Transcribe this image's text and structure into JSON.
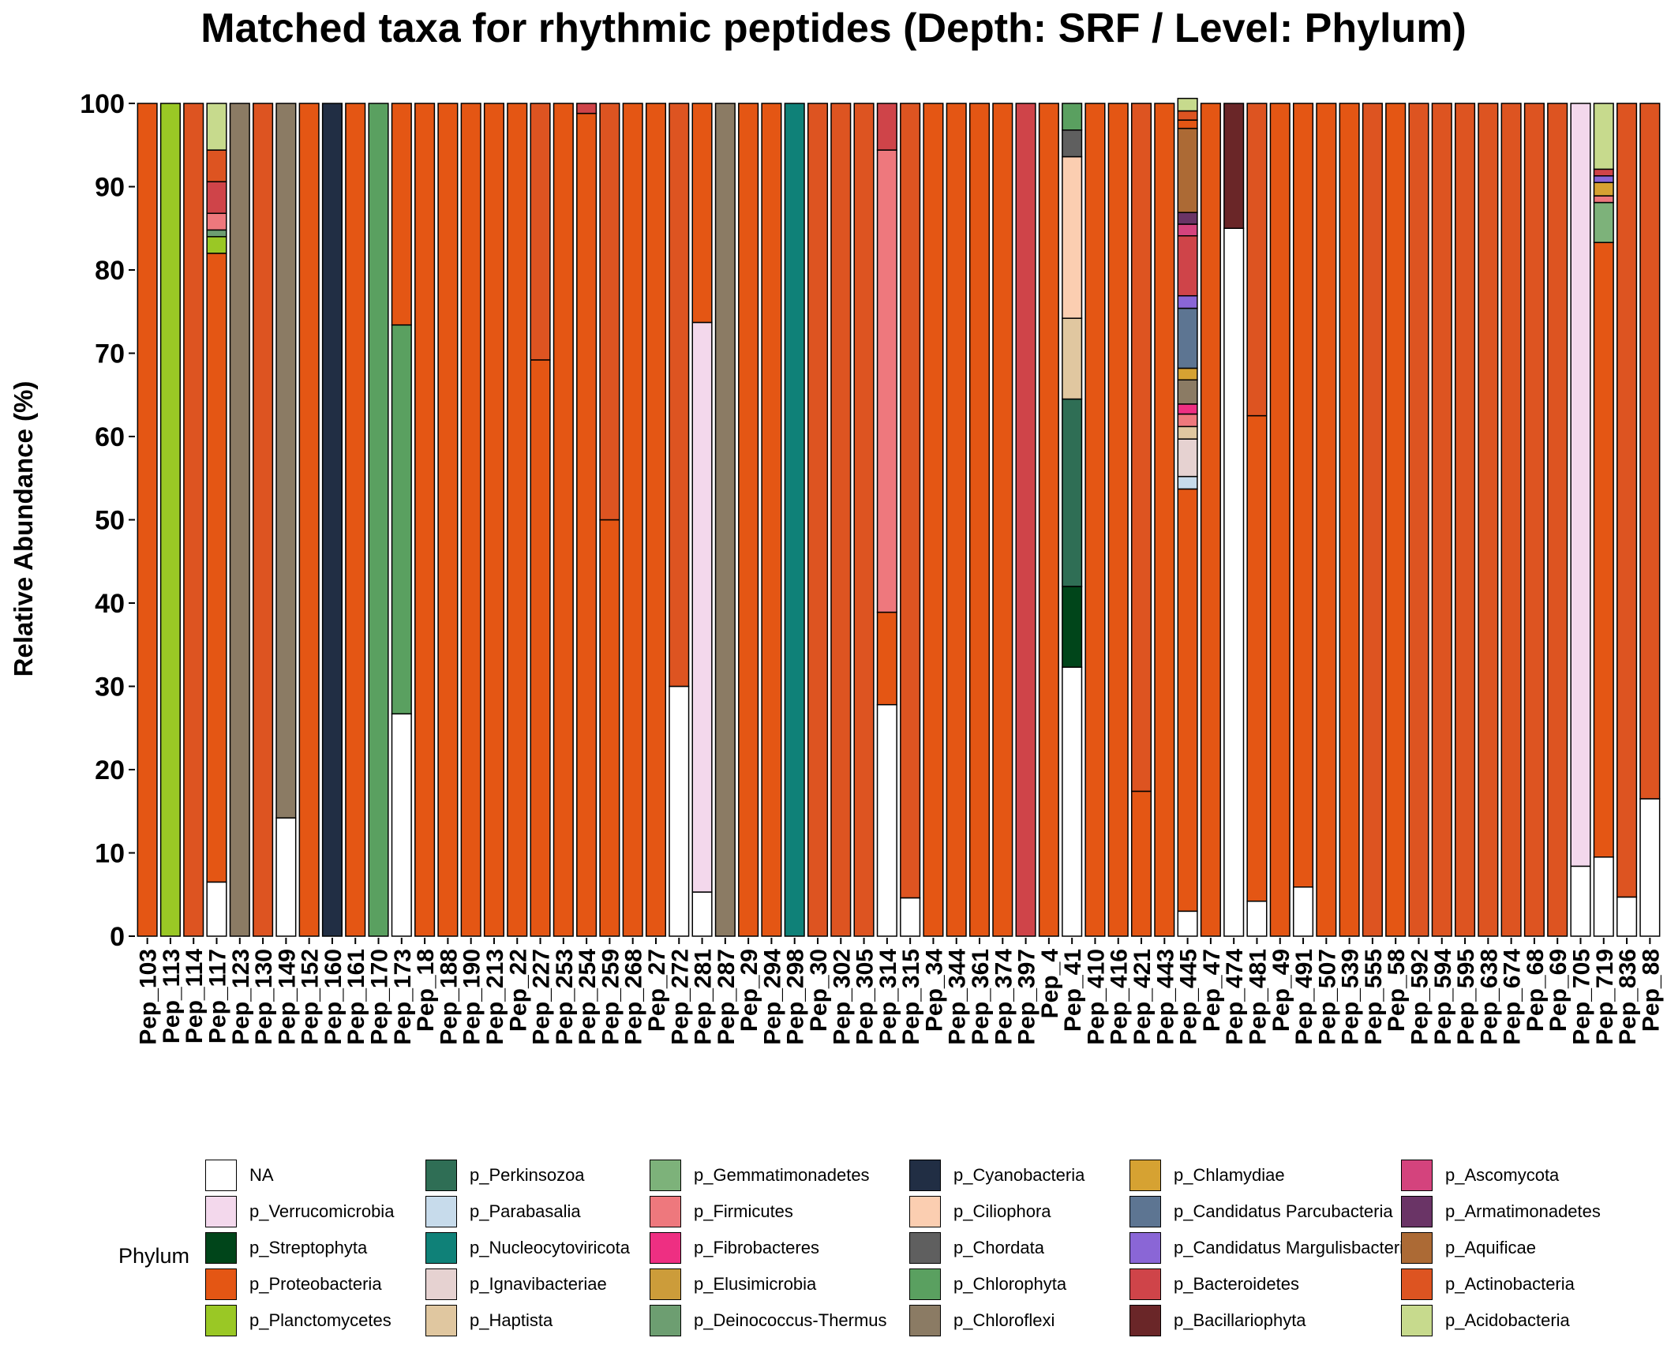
{
  "chart_data": {
    "type": "bar",
    "stacked": true,
    "title": "Matched taxa for rhythmic peptides (Depth: SRF / Level: Phylum)",
    "xlabel": "",
    "ylabel": "Relative Abundance (%)",
    "ylim": [
      0,
      100
    ],
    "yticks": [
      0,
      10,
      20,
      30,
      40,
      50,
      60,
      70,
      80,
      90,
      100
    ],
    "grid": false,
    "legend_title": "Phylum",
    "legend_position": "bottom",
    "legend": [
      {
        "name": "NA",
        "color": "#FFFFFF"
      },
      {
        "name": "p_Verrucomicrobia",
        "color": "#F3D8EC"
      },
      {
        "name": "p_Streptophyta",
        "color": "#00451A"
      },
      {
        "name": "p_Proteobacteria",
        "color": "#E45614"
      },
      {
        "name": "p_Planctomycetes",
        "color": "#9AC825"
      },
      {
        "name": "p_Perkinsozoa",
        "color": "#2F6E55"
      },
      {
        "name": "p_Parabasalia",
        "color": "#C7DBEB"
      },
      {
        "name": "p_Nucleocytoviricota",
        "color": "#0F8178"
      },
      {
        "name": "p_Ignavibacteriae",
        "color": "#E6D2D1"
      },
      {
        "name": "p_Haptista",
        "color": "#E0C7A0"
      },
      {
        "name": "p_Gemmatimonadetes",
        "color": "#7DB27A"
      },
      {
        "name": "p_Firmicutes",
        "color": "#EE787D"
      },
      {
        "name": "p_Fibrobacteres",
        "color": "#EE2F82"
      },
      {
        "name": "p_Elusimicrobia",
        "color": "#CC9C3A"
      },
      {
        "name": "p_Deinococcus-Thermus",
        "color": "#6D9E71"
      },
      {
        "name": "p_Cyanobacteria",
        "color": "#212E44"
      },
      {
        "name": "p_Ciliophora",
        "color": "#FBCEB1"
      },
      {
        "name": "p_Chordata",
        "color": "#5F5F5F"
      },
      {
        "name": "p_Chlorophyta",
        "color": "#5AA060"
      },
      {
        "name": "p_Chloroflexi",
        "color": "#8B7B64"
      },
      {
        "name": "p_Chlamydiae",
        "color": "#D6A232"
      },
      {
        "name": "p_Candidatus Parcubacteria",
        "color": "#5D7592"
      },
      {
        "name": "p_Candidatus Margulisbacteria",
        "color": "#8A66D6"
      },
      {
        "name": "p_Bacteroidetes",
        "color": "#CF4449"
      },
      {
        "name": "p_Bacillariophyta",
        "color": "#6A2628"
      },
      {
        "name": "p_Ascomycota",
        "color": "#D4437D"
      },
      {
        "name": "p_Armatimonadetes",
        "color": "#6A3466"
      },
      {
        "name": "p_Aquificae",
        "color": "#AC6A35"
      },
      {
        "name": "p_Actinobacteria",
        "color": "#DD5421"
      },
      {
        "name": "p_Acidobacteria",
        "color": "#C7DA8D"
      }
    ],
    "categories": [
      "Pep_103",
      "Pep_113",
      "Pep_114",
      "Pep_117",
      "Pep_123",
      "Pep_130",
      "Pep_149",
      "Pep_152",
      "Pep_160",
      "Pep_161",
      "Pep_170",
      "Pep_173",
      "Pep_18",
      "Pep_188",
      "Pep_190",
      "Pep_213",
      "Pep_22",
      "Pep_227",
      "Pep_253",
      "Pep_254",
      "Pep_259",
      "Pep_268",
      "Pep_27",
      "Pep_272",
      "Pep_281",
      "Pep_287",
      "Pep_29",
      "Pep_294",
      "Pep_298",
      "Pep_30",
      "Pep_302",
      "Pep_305",
      "Pep_314",
      "Pep_315",
      "Pep_34",
      "Pep_344",
      "Pep_361",
      "Pep_374",
      "Pep_397",
      "Pep_4",
      "Pep_41",
      "Pep_410",
      "Pep_416",
      "Pep_421",
      "Pep_443",
      "Pep_445",
      "Pep_47",
      "Pep_474",
      "Pep_481",
      "Pep_49",
      "Pep_491",
      "Pep_507",
      "Pep_539",
      "Pep_555",
      "Pep_58",
      "Pep_592",
      "Pep_594",
      "Pep_595",
      "Pep_638",
      "Pep_674",
      "Pep_68",
      "Pep_69",
      "Pep_705",
      "Pep_719",
      "Pep_836",
      "Pep_88"
    ],
    "stacks": [
      [
        [
          "p_Proteobacteria",
          100
        ]
      ],
      [
        [
          "p_Planctomycetes",
          100
        ]
      ],
      [
        [
          "p_Actinobacteria",
          100
        ]
      ],
      [
        [
          "NA",
          6.5
        ],
        [
          "p_Proteobacteria",
          75.5
        ],
        [
          "p_Planctomycetes",
          2
        ],
        [
          "p_Deinococcus-Thermus",
          0.8
        ],
        [
          "p_Firmicutes",
          2
        ],
        [
          "p_Bacteroidetes",
          3.8
        ],
        [
          "p_Actinobacteria",
          3.8
        ],
        [
          "p_Acidobacteria",
          5.6
        ]
      ],
      [
        [
          "p_Chloroflexi",
          100
        ]
      ],
      [
        [
          "p_Actinobacteria",
          100
        ]
      ],
      [
        [
          "NA",
          14.2
        ],
        [
          "p_Chloroflexi",
          85.8
        ]
      ],
      [
        [
          "p_Proteobacteria",
          100
        ]
      ],
      [
        [
          "p_Cyanobacteria",
          100
        ]
      ],
      [
        [
          "p_Proteobacteria",
          100
        ]
      ],
      [
        [
          "p_Chlorophyta",
          100
        ]
      ],
      [
        [
          "NA",
          26.7
        ],
        [
          "p_Chlorophyta",
          46.7
        ],
        [
          "p_Proteobacteria",
          26.6
        ]
      ],
      [
        [
          "p_Proteobacteria",
          100
        ]
      ],
      [
        [
          "p_Proteobacteria",
          100
        ]
      ],
      [
        [
          "p_Proteobacteria",
          100
        ]
      ],
      [
        [
          "p_Proteobacteria",
          100
        ]
      ],
      [
        [
          "p_Proteobacteria",
          100
        ]
      ],
      [
        [
          "p_Proteobacteria",
          69.2
        ],
        [
          "p_Actinobacteria",
          30.8
        ]
      ],
      [
        [
          "p_Proteobacteria",
          100
        ]
      ],
      [
        [
          "p_Proteobacteria",
          98.8
        ],
        [
          "p_Bacteroidetes",
          1.2
        ]
      ],
      [
        [
          "p_Proteobacteria",
          50
        ],
        [
          "p_Actinobacteria",
          50
        ]
      ],
      [
        [
          "p_Proteobacteria",
          100
        ]
      ],
      [
        [
          "p_Proteobacteria",
          100
        ]
      ],
      [
        [
          "NA",
          30
        ],
        [
          "p_Actinobacteria",
          70
        ]
      ],
      [
        [
          "NA",
          5.3
        ],
        [
          "p_Verrucomicrobia",
          68.4
        ],
        [
          "p_Proteobacteria",
          26.3
        ]
      ],
      [
        [
          "p_Chloroflexi",
          100
        ]
      ],
      [
        [
          "p_Proteobacteria",
          100
        ]
      ],
      [
        [
          "p_Proteobacteria",
          100
        ]
      ],
      [
        [
          "p_Nucleocytoviricota",
          100
        ]
      ],
      [
        [
          "p_Actinobacteria",
          100
        ]
      ],
      [
        [
          "p_Actinobacteria",
          100
        ]
      ],
      [
        [
          "p_Actinobacteria",
          100
        ]
      ],
      [
        [
          "NA",
          27.8
        ],
        [
          "p_Proteobacteria",
          11.1
        ],
        [
          "p_Firmicutes",
          55.5
        ],
        [
          "p_Bacteroidetes",
          5.6
        ]
      ],
      [
        [
          "NA",
          4.6
        ],
        [
          "p_Actinobacteria",
          95.4
        ]
      ],
      [
        [
          "p_Proteobacteria",
          100
        ]
      ],
      [
        [
          "p_Proteobacteria",
          100
        ]
      ],
      [
        [
          "p_Proteobacteria",
          100
        ]
      ],
      [
        [
          "p_Proteobacteria",
          100
        ]
      ],
      [
        [
          "p_Bacteroidetes",
          100
        ]
      ],
      [
        [
          "p_Proteobacteria",
          100
        ]
      ],
      [
        [
          "NA",
          32.3
        ],
        [
          "p_Streptophyta",
          9.7
        ],
        [
          "p_Perkinsozoa",
          22.5
        ],
        [
          "p_Haptista",
          9.7
        ],
        [
          "p_Ciliophora",
          19.4
        ],
        [
          "p_Chordata",
          3.2
        ],
        [
          "p_Chlorophyta",
          3.2
        ]
      ],
      [
        [
          "p_Proteobacteria",
          100
        ]
      ],
      [
        [
          "p_Proteobacteria",
          100
        ]
      ],
      [
        [
          "p_Proteobacteria",
          17.4
        ],
        [
          "p_Actinobacteria",
          82.6
        ]
      ],
      [
        [
          "p_Proteobacteria",
          100
        ]
      ],
      [
        [
          "NA",
          3
        ],
        [
          "p_Proteobacteria",
          50.7
        ],
        [
          "p_Parabasalia",
          1.5
        ],
        [
          "p_Ignavibacteriae",
          4.5
        ],
        [
          "p_Haptista",
          1.5
        ],
        [
          "p_Firmicutes",
          1.5
        ],
        [
          "p_Fibrobacteres",
          1.2
        ],
        [
          "p_Chloroflexi",
          2.9
        ],
        [
          "p_Chlamydiae",
          1.4
        ],
        [
          "p_Candidatus Parcubacteria",
          7.2
        ],
        [
          "p_Candidatus Margulisbacteria",
          1.5
        ],
        [
          "p_Bacteroidetes",
          7.2
        ],
        [
          "p_Ascomycota",
          1.4
        ],
        [
          "p_Armatimonadetes",
          1.4
        ],
        [
          "p_Aquificae",
          10.1
        ],
        [
          "p_Proteobacteria",
          1
        ],
        [
          "p_Actinobacteria",
          1.1
        ],
        [
          "p_Acidobacteria",
          1.5
        ]
      ],
      [
        [
          "p_Proteobacteria",
          100
        ]
      ],
      [
        [
          "NA",
          85
        ],
        [
          "p_Bacillariophyta",
          15
        ]
      ],
      [
        [
          "NA",
          4.2
        ],
        [
          "p_Proteobacteria",
          58.3
        ],
        [
          "p_Actinobacteria",
          37.5
        ]
      ],
      [
        [
          "p_Proteobacteria",
          100
        ]
      ],
      [
        [
          "NA",
          5.9
        ],
        [
          "p_Proteobacteria",
          94.1
        ]
      ],
      [
        [
          "p_Proteobacteria",
          100
        ]
      ],
      [
        [
          "p_Proteobacteria",
          100
        ]
      ],
      [
        [
          "p_Actinobacteria",
          100
        ]
      ],
      [
        [
          "p_Proteobacteria",
          100
        ]
      ],
      [
        [
          "p_Actinobacteria",
          100
        ]
      ],
      [
        [
          "p_Actinobacteria",
          100
        ]
      ],
      [
        [
          "p_Actinobacteria",
          100
        ]
      ],
      [
        [
          "p_Actinobacteria",
          100
        ]
      ],
      [
        [
          "p_Actinobacteria",
          100
        ]
      ],
      [
        [
          "p_Actinobacteria",
          100
        ]
      ],
      [
        [
          "p_Actinobacteria",
          100
        ]
      ],
      [
        [
          "NA",
          8.4
        ],
        [
          "p_Verrucomicrobia",
          91.6
        ]
      ],
      [
        [
          "NA",
          9.5
        ],
        [
          "p_Proteobacteria",
          73.8
        ],
        [
          "p_Gemmatimonadetes",
          4.8
        ],
        [
          "p_Firmicutes",
          0.8
        ],
        [
          "p_Chlamydiae",
          1.6
        ],
        [
          "p_Candidatus Margulisbacteria",
          0.8
        ],
        [
          "p_Bacteroidetes",
          0.8
        ],
        [
          "p_Acidobacteria",
          7.9
        ]
      ],
      [
        [
          "NA",
          4.7
        ],
        [
          "p_Actinobacteria",
          95.3
        ]
      ],
      [
        [
          "NA",
          16.5
        ],
        [
          "p_Actinobacteria",
          83.5
        ]
      ]
    ]
  }
}
